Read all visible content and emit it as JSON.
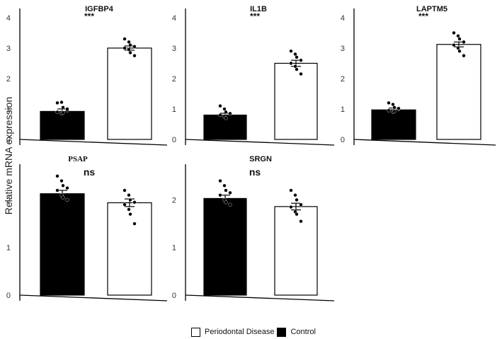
{
  "y_axis_label": "Relative mRNA expression",
  "legend": {
    "items": [
      {
        "label": "Periodontal Disease",
        "color": "#ffffff"
      },
      {
        "label": "Control",
        "color": "#000000"
      }
    ]
  },
  "chart_data": [
    {
      "type": "bar",
      "title": "IGFBP4",
      "significance": "***",
      "categories": [
        "Control",
        "Periodontal Disease"
      ],
      "values": [
        0.92,
        3.0
      ],
      "errors": [
        0.08,
        0.07
      ],
      "points": [
        [
          1.2,
          1.22,
          1.05,
          0.95,
          0.9,
          0.85,
          0.88,
          1.0
        ],
        [
          3.3,
          3.2,
          3.1,
          3.05,
          3.0,
          2.95,
          2.85,
          2.75
        ]
      ],
      "yticks": [
        "0",
        "1",
        "2",
        "3",
        "4"
      ],
      "ylim": [
        0,
        4.3
      ]
    },
    {
      "type": "bar",
      "title": "IL1B",
      "significance": "***",
      "categories": [
        "Control",
        "Periodontal Disease"
      ],
      "values": [
        0.8,
        2.5
      ],
      "errors": [
        0.06,
        0.1
      ],
      "points": [
        [
          1.1,
          1.0,
          0.9,
          0.85,
          0.8,
          0.75,
          0.7,
          0.85
        ],
        [
          2.9,
          2.8,
          2.7,
          2.6,
          2.5,
          2.4,
          2.3,
          2.15
        ]
      ],
      "yticks": [
        "0",
        "1",
        "2",
        "3",
        "4"
      ],
      "ylim": [
        0,
        4.3
      ]
    },
    {
      "type": "bar",
      "title": "LAPTM5",
      "significance": "***",
      "categories": [
        "Control",
        "Periodontal Disease"
      ],
      "values": [
        0.97,
        3.12
      ],
      "errors": [
        0.06,
        0.08
      ],
      "points": [
        [
          1.2,
          1.15,
          1.05,
          1.0,
          0.95,
          0.9,
          0.92,
          1.02
        ],
        [
          3.5,
          3.4,
          3.3,
          3.2,
          3.1,
          3.0,
          2.9,
          2.75
        ]
      ],
      "yticks": [
        "0",
        "1",
        "2",
        "3",
        "4"
      ],
      "ylim": [
        0,
        4.3
      ]
    },
    {
      "type": "bar",
      "title": "PSAP",
      "significance": "ns",
      "categories": [
        "Control",
        "Periodontal Disease"
      ],
      "values": [
        2.13,
        1.94
      ],
      "errors": [
        0.07,
        0.08
      ],
      "points": [
        [
          2.5,
          2.4,
          2.3,
          2.25,
          2.2,
          2.1,
          2.05,
          2.0
        ],
        [
          2.2,
          2.1,
          2.0,
          1.95,
          1.9,
          1.8,
          1.7,
          1.5
        ]
      ],
      "yticks": [
        "0",
        "1",
        "2"
      ],
      "ylim": [
        0,
        2.75
      ]
    },
    {
      "type": "bar",
      "title": "SRGN",
      "significance": "ns",
      "categories": [
        "Control",
        "Periodontal Disease"
      ],
      "values": [
        2.03,
        1.86
      ],
      "errors": [
        0.07,
        0.07
      ],
      "points": [
        [
          2.4,
          2.3,
          2.2,
          2.15,
          2.1,
          2.0,
          1.95,
          1.9
        ],
        [
          2.2,
          2.1,
          2.0,
          1.9,
          1.85,
          1.75,
          1.7,
          1.55
        ]
      ],
      "yticks": [
        "0",
        "1",
        "2"
      ],
      "ylim": [
        0,
        2.75
      ]
    }
  ]
}
